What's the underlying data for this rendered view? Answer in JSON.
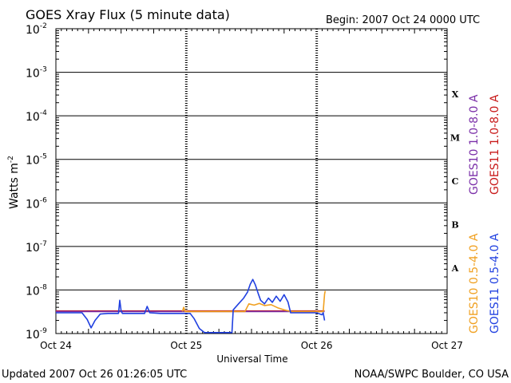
{
  "chart_data": {
    "type": "line",
    "title": "GOES Xray Flux (5 minute data)",
    "begin_label": "Begin:  2007 Oct 24 0000 UTC",
    "xlabel": "Universal Time",
    "ylabel_base": "Watts m",
    "ylabel_exp": "-2",
    "updated": "Updated 2007 Oct 26 01:26:05 UTC",
    "credit": "NOAA/SWPC Boulder, CO USA",
    "x_unit": "days since 2007 Oct 24 0000 UTC",
    "xlim": [
      0,
      3
    ],
    "x_ticks": [
      {
        "v": 0,
        "label": "Oct 24"
      },
      {
        "v": 1,
        "label": "Oct 25"
      },
      {
        "v": 2,
        "label": "Oct 26"
      },
      {
        "v": 3,
        "label": "Oct 27"
      }
    ],
    "y_scale": "log",
    "ylim_exp": [
      -9,
      -2
    ],
    "y_ticks": [
      {
        "exp": -2,
        "base": "10",
        "sup": "-2"
      },
      {
        "exp": -3,
        "base": "10",
        "sup": "-3"
      },
      {
        "exp": -4,
        "base": "10",
        "sup": "-4"
      },
      {
        "exp": -5,
        "base": "10",
        "sup": "-5"
      },
      {
        "exp": -6,
        "base": "10",
        "sup": "-6"
      },
      {
        "exp": -7,
        "base": "10",
        "sup": "-7"
      },
      {
        "exp": -8,
        "base": "10",
        "sup": "-8"
      },
      {
        "exp": -9,
        "base": "10",
        "sup": "-9"
      }
    ],
    "flare_classes": [
      {
        "label": "X",
        "exp": -3.5
      },
      {
        "label": "M",
        "exp": -4.5
      },
      {
        "label": "C",
        "exp": -5.5
      },
      {
        "label": "B",
        "exp": -6.5
      },
      {
        "label": "A",
        "exp": -7.5
      }
    ],
    "legend_top": [
      {
        "label": "GOES10 1.0-8.0 A",
        "color": "#7a2ea8"
      },
      {
        "label": "GOES11 1.0-8.0 A",
        "color": "#c81818"
      }
    ],
    "legend_bottom": [
      {
        "label": "GOES10 0.5-4.0 A",
        "color": "#f0a020"
      },
      {
        "label": "GOES11 0.5-4.0 A",
        "color": "#2040e0"
      }
    ],
    "series": [
      {
        "name": "GOES11 1.0-8.0 A",
        "color": "#c81818",
        "points": [
          [
            0,
            3.3e-09
          ],
          [
            0.5,
            3.3e-09
          ],
          [
            1.0,
            3.3e-09
          ],
          [
            1.5,
            3.3e-09
          ],
          [
            2.06,
            3.3e-09
          ]
        ]
      },
      {
        "name": "GOES10 1.0-8.0 A",
        "color": "#7a2ea8",
        "points": [
          [
            0,
            3.2e-09
          ],
          [
            2.06,
            3.2e-09
          ]
        ]
      },
      {
        "name": "GOES10 0.5-4.0 A",
        "color": "#f0a020",
        "points": [
          [
            0.97,
            3.2e-09
          ],
          [
            0.98,
            4e-09
          ],
          [
            0.99,
            3.2e-09
          ],
          [
            1.45,
            3.2e-09
          ],
          [
            1.48,
            4.8e-09
          ],
          [
            1.52,
            4.5e-09
          ],
          [
            1.56,
            4.9e-09
          ],
          [
            1.6,
            4.4e-09
          ],
          [
            1.65,
            4.6e-09
          ],
          [
            1.7,
            3.9e-09
          ],
          [
            1.75,
            3.5e-09
          ],
          [
            1.8,
            3.2e-09
          ],
          [
            2.05,
            3.2e-09
          ],
          [
            2.06,
            8e-09
          ],
          [
            2.065,
            9.5e-09
          ]
        ]
      },
      {
        "name": "GOES11 0.5-4.0 A",
        "color": "#2040e0",
        "points": [
          [
            0,
            3e-09
          ],
          [
            0.2,
            3e-09
          ],
          [
            0.24,
            2.1e-09
          ],
          [
            0.27,
            1.35e-09
          ],
          [
            0.3,
            2e-09
          ],
          [
            0.34,
            2.8e-09
          ],
          [
            0.4,
            2.9e-09
          ],
          [
            0.48,
            2.9e-09
          ],
          [
            0.49,
            5.8e-09
          ],
          [
            0.5,
            3.3e-09
          ],
          [
            0.51,
            2.9e-09
          ],
          [
            0.55,
            2.9e-09
          ],
          [
            0.68,
            2.9e-09
          ],
          [
            0.7,
            4.2e-09
          ],
          [
            0.72,
            3e-09
          ],
          [
            0.8,
            2.9e-09
          ],
          [
            0.97,
            2.9e-09
          ],
          [
            1.03,
            2.9e-09
          ],
          [
            1.06,
            2.2e-09
          ],
          [
            1.1,
            1.3e-09
          ],
          [
            1.14,
            1.05e-09
          ],
          [
            1.25,
            1.05e-09
          ],
          [
            1.32,
            1.05e-09
          ],
          [
            1.35,
            1.05e-09
          ],
          [
            1.36,
            3.5e-09
          ],
          [
            1.4,
            4.8e-09
          ],
          [
            1.44,
            6.5e-09
          ],
          [
            1.47,
            9e-09
          ],
          [
            1.49,
            1.35e-08
          ],
          [
            1.51,
            1.75e-08
          ],
          [
            1.53,
            1.3e-08
          ],
          [
            1.55,
            8.5e-09
          ],
          [
            1.57,
            5.8e-09
          ],
          [
            1.6,
            4.8e-09
          ],
          [
            1.63,
            6.5e-09
          ],
          [
            1.66,
            5.2e-09
          ],
          [
            1.69,
            7.2e-09
          ],
          [
            1.72,
            5.5e-09
          ],
          [
            1.75,
            7.8e-09
          ],
          [
            1.78,
            5.3e-09
          ],
          [
            1.8,
            3e-09
          ],
          [
            1.95,
            3e-09
          ],
          [
            2.0,
            3e-09
          ],
          [
            2.04,
            2.7e-09
          ],
          [
            2.05,
            3e-09
          ],
          [
            2.06,
            2e-09
          ]
        ]
      }
    ]
  }
}
